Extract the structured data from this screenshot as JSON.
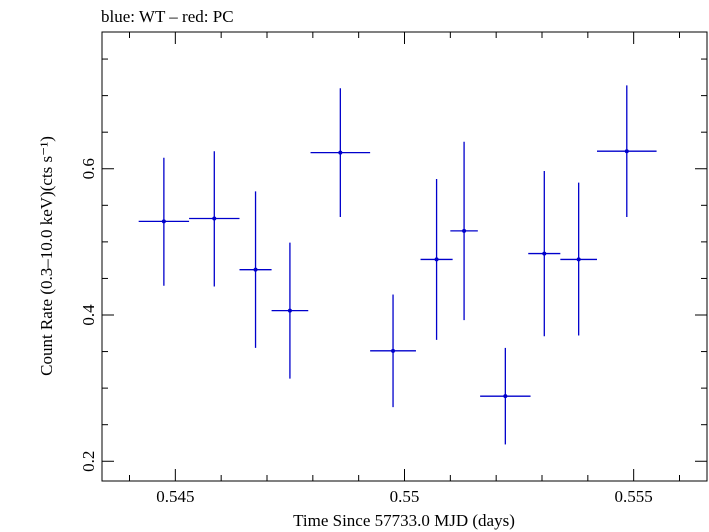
{
  "chart_data": {
    "type": "scatter",
    "title": "blue: WT – red: PC",
    "xlabel": "Time Since 57733.0 MJD (days)",
    "ylabel": "Count Rate (0.3–10.0 keV)(cts s⁻¹)",
    "xlim": [
      0.5434,
      0.5566
    ],
    "ylim": [
      0.173,
      0.787
    ],
    "xticks": [
      0.545,
      0.55,
      0.555
    ],
    "xtick_labels": [
      "0.545",
      "0.55",
      "0.555"
    ],
    "yticks": [
      0.2,
      0.4,
      0.6
    ],
    "ytick_labels": [
      "0.2",
      "0.4",
      "0.6"
    ],
    "grid": false,
    "series": [
      {
        "color": "#0000cc",
        "points": [
          {
            "x": 0.54475,
            "y": 0.528,
            "xerr": 0.00055,
            "yerr_low": 0.088,
            "yerr_high": 0.087
          },
          {
            "x": 0.54585,
            "y": 0.532,
            "xerr": 0.00055,
            "yerr_low": 0.093,
            "yerr_high": 0.092
          },
          {
            "x": 0.54675,
            "y": 0.462,
            "xerr": 0.00035,
            "yerr_low": 0.107,
            "yerr_high": 0.107
          },
          {
            "x": 0.5475,
            "y": 0.406,
            "xerr": 0.0004,
            "yerr_low": 0.093,
            "yerr_high": 0.093
          },
          {
            "x": 0.5486,
            "y": 0.622,
            "xerr": 0.00065,
            "yerr_low": 0.088,
            "yerr_high": 0.088
          },
          {
            "x": 0.54975,
            "y": 0.351,
            "xerr": 0.0005,
            "yerr_low": 0.077,
            "yerr_high": 0.077
          },
          {
            "x": 0.5507,
            "y": 0.476,
            "xerr": 0.00035,
            "yerr_low": 0.11,
            "yerr_high": 0.11
          },
          {
            "x": 0.5513,
            "y": 0.515,
            "xerr": 0.0003,
            "yerr_low": 0.122,
            "yerr_high": 0.122
          },
          {
            "x": 0.5522,
            "y": 0.289,
            "xerr": 0.00055,
            "yerr_low": 0.066,
            "yerr_high": 0.066
          },
          {
            "x": 0.55305,
            "y": 0.484,
            "xerr": 0.00035,
            "yerr_low": 0.113,
            "yerr_high": 0.113
          },
          {
            "x": 0.5538,
            "y": 0.476,
            "xerr": 0.0004,
            "yerr_low": 0.104,
            "yerr_high": 0.105
          },
          {
            "x": 0.55485,
            "y": 0.624,
            "xerr": 0.00065,
            "yerr_low": 0.09,
            "yerr_high": 0.09
          }
        ]
      }
    ]
  }
}
